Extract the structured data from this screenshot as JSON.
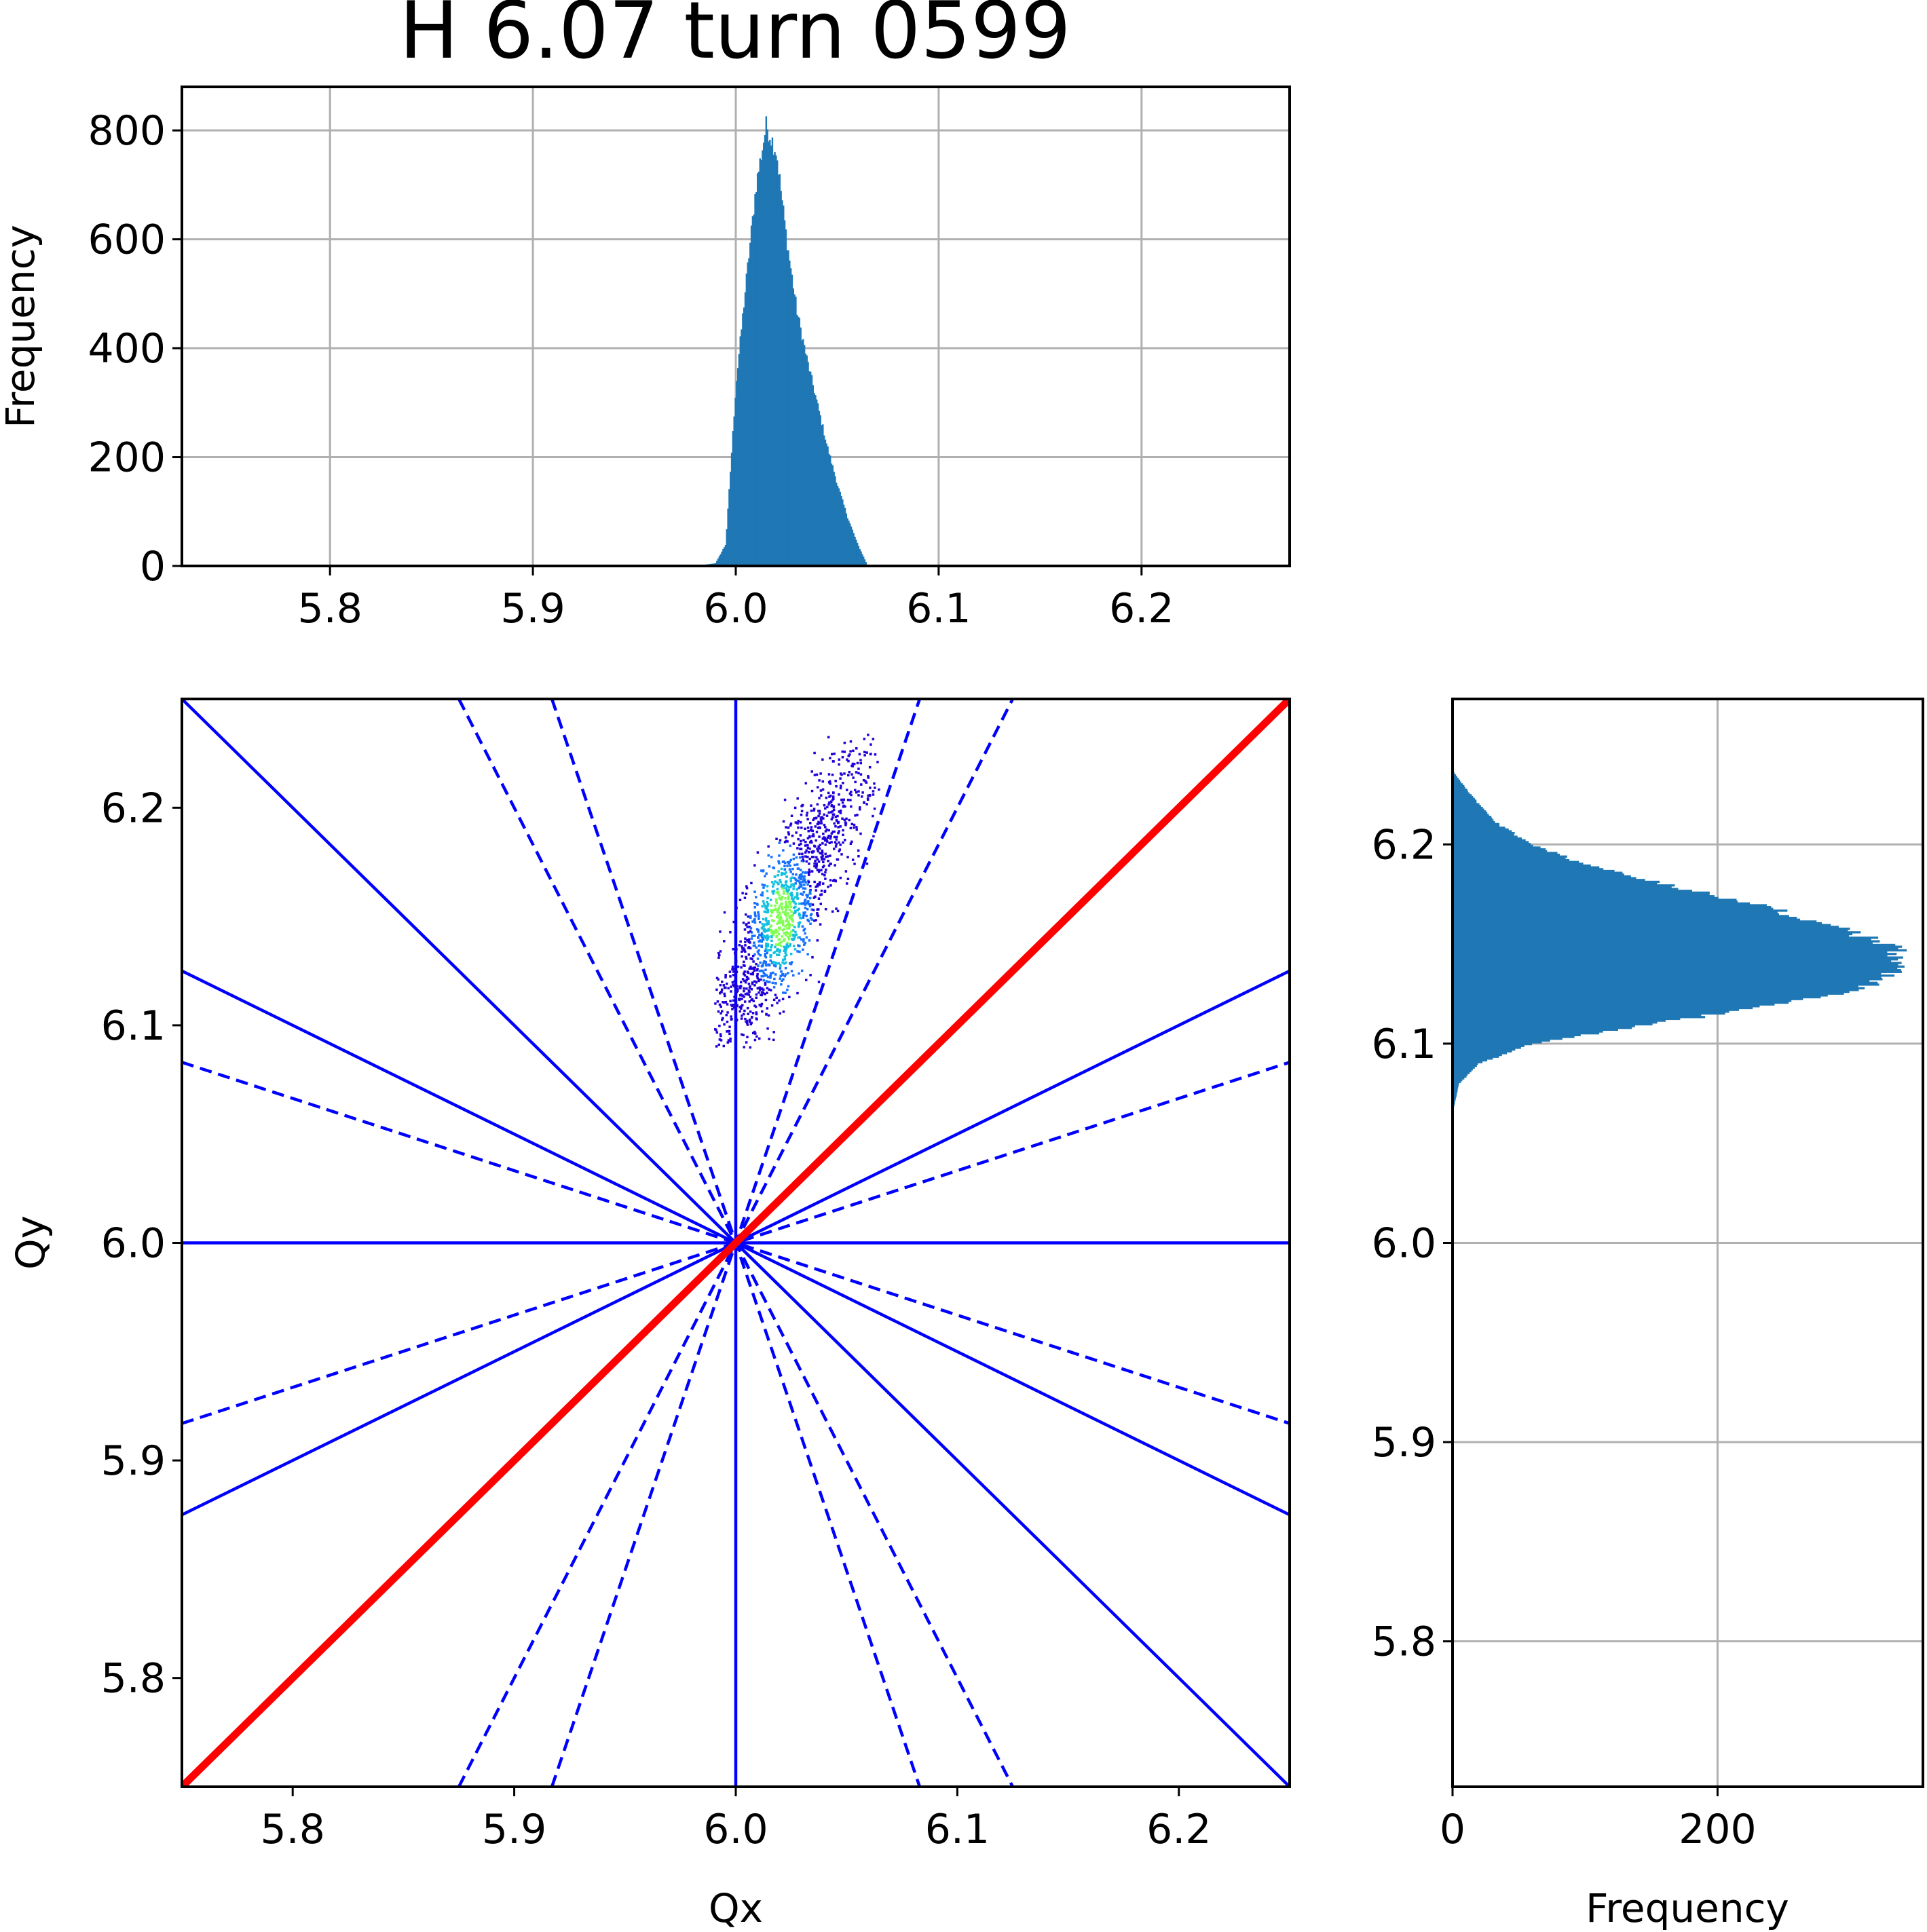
{
  "title": "H 6.07 turn 0599",
  "colors": {
    "hist": "#1f77b4",
    "resonance": "#0000ff",
    "coupling": "#ff0000",
    "grid": "#b0b0b0"
  },
  "chart_data": [
    {
      "type": "bar",
      "role": "Qx histogram",
      "xlabel": "",
      "ylabel": "Frequency",
      "xlim": [
        5.727,
        6.273
      ],
      "ylim": [
        0,
        880
      ],
      "xticks": [
        "5.8",
        "5.9",
        "6.0",
        "6.1",
        "6.2"
      ],
      "yticks": [
        "0",
        "200",
        "400",
        "600",
        "800"
      ],
      "grid": true,
      "distribution": {
        "x": [
          5.98,
          5.99,
          5.995,
          6.0,
          6.005,
          6.01,
          6.015,
          6.02,
          6.025,
          6.03,
          6.035,
          6.04,
          6.045,
          6.05,
          6.055,
          6.06,
          6.065
        ],
        "y": [
          0,
          5,
          40,
          330,
          520,
          700,
          810,
          760,
          600,
          470,
          380,
          300,
          220,
          150,
          90,
          40,
          0
        ]
      }
    },
    {
      "type": "scatter",
      "role": "tune diagram",
      "xlabel": "Qx",
      "ylabel": "Qy",
      "xlim": [
        5.75,
        6.25
      ],
      "ylim": [
        5.75,
        6.25
      ],
      "xticks": [
        "5.8",
        "5.9",
        "6.0",
        "6.1",
        "6.2"
      ],
      "yticks": [
        "5.8",
        "5.9",
        "6.0",
        "6.1",
        "6.2"
      ],
      "grid": false,
      "cloud": {
        "center": [
          6.02,
          6.15
        ],
        "x_range": [
          5.99,
          6.065
        ],
        "y_range": [
          6.09,
          6.235
        ]
      },
      "resonance_lines": {
        "solid": [
          [
            [
              5.75,
              6.0
            ],
            [
              6.25,
              6.0
            ]
          ],
          [
            [
              6.0,
              5.75
            ],
            [
              6.0,
              6.25
            ]
          ],
          [
            [
              5.75,
              6.25
            ],
            [
              6.25,
              5.75
            ]
          ],
          [
            [
              5.75,
              6.125
            ],
            [
              6.25,
              5.875
            ]
          ],
          [
            [
              5.75,
              5.875
            ],
            [
              6.25,
              6.125
            ]
          ]
        ],
        "dashed": [
          [
            [
              5.75,
              6.083
            ],
            [
              6.25,
              5.917
            ]
          ],
          [
            [
              5.75,
              5.917
            ],
            [
              6.25,
              6.083
            ]
          ],
          [
            [
              5.875,
              6.25
            ],
            [
              6.125,
              5.75
            ]
          ],
          [
            [
              5.875,
              5.75
            ],
            [
              6.125,
              6.25
            ]
          ],
          [
            [
              5.917,
              6.25
            ],
            [
              6.083,
              5.75
            ]
          ],
          [
            [
              5.917,
              5.75
            ],
            [
              6.083,
              6.25
            ]
          ]
        ],
        "coupling": [
          [
            5.75,
            5.75
          ],
          [
            6.25,
            6.25
          ]
        ]
      }
    },
    {
      "type": "bar",
      "role": "Qy histogram",
      "orientation": "horizontal",
      "xlabel": "Frequency",
      "ylabel": "",
      "xlim": [
        0,
        355
      ],
      "ylim": [
        5.727,
        6.273
      ],
      "xticks": [
        "0",
        "200"
      ],
      "yticks": [
        "5.8",
        "5.9",
        "6.0",
        "6.1",
        "6.2"
      ],
      "grid": true,
      "distribution": {
        "y": [
          6.065,
          6.08,
          6.09,
          6.1,
          6.11,
          6.12,
          6.13,
          6.14,
          6.15,
          6.16,
          6.17,
          6.18,
          6.19,
          6.2,
          6.21,
          6.22,
          6.23,
          6.237
        ],
        "x": [
          0,
          5,
          20,
          60,
          150,
          250,
          320,
          345,
          330,
          280,
          230,
          160,
          100,
          60,
          35,
          20,
          8,
          0
        ]
      }
    }
  ]
}
